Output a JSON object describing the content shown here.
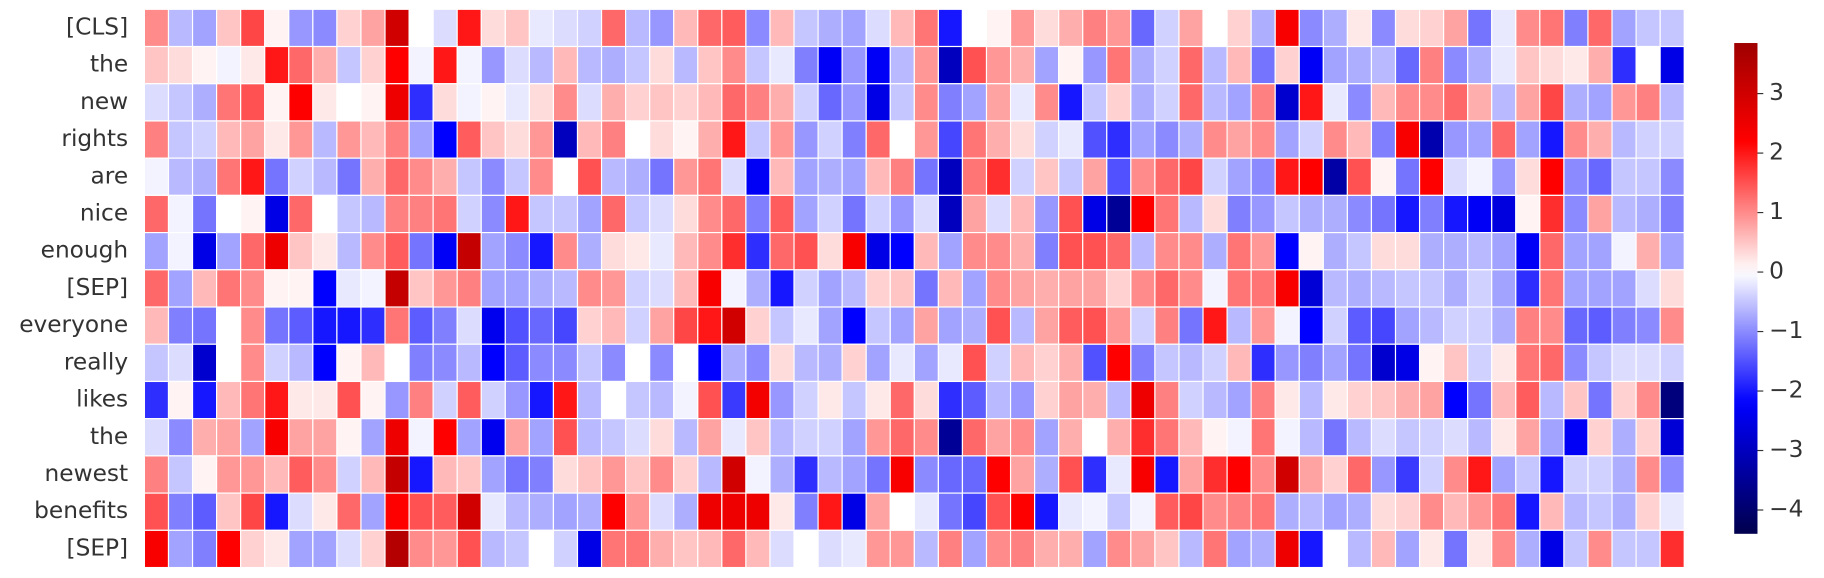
{
  "chart_data": {
    "type": "heatmap",
    "colormap": "seismic",
    "center": 0,
    "vlim": [
      -4.4,
      3.85
    ],
    "colorbar_ticks": [
      {
        "value": -4,
        "label": "−4"
      },
      {
        "value": -3,
        "label": "−3"
      },
      {
        "value": -2,
        "label": "−2"
      },
      {
        "value": -1,
        "label": "−1"
      },
      0,
      1,
      2,
      3
    ],
    "rows": [
      "[CLS]",
      "the",
      "new",
      "rights",
      "are",
      "nice",
      "enough",
      "[SEP]",
      "everyone",
      "really",
      "likes",
      "the",
      "newest",
      "benefits",
      "[SEP]"
    ],
    "values": [
      [
        1.0,
        -0.6,
        -0.8,
        0.5,
        1.6,
        0.1,
        -0.9,
        -1.0,
        0.4,
        0.8,
        3.0,
        0.0,
        -0.3,
        2.0,
        0.3,
        0.5,
        -0.2,
        -0.3,
        -0.4,
        1.3,
        -0.6,
        -0.9,
        0.6,
        1.3,
        1.4,
        -1.0,
        0.6,
        -0.5,
        -0.7,
        -0.8,
        -0.3,
        0.6,
        1.2,
        -2.0,
        0.0,
        0.1,
        0.9,
        0.3,
        0.7,
        1.1,
        0.9,
        -1.3,
        -0.4,
        0.8,
        0.0,
        0.4,
        -0.7,
        2.3,
        -1.0,
        -0.7,
        0.2,
        -1.0,
        0.3,
        0.4,
        0.8,
        -1.2,
        -0.2,
        1.0,
        1.2,
        -1.1,
        1.3,
        -0.8,
        -0.5,
        -0.5
      ],
      [
        0.5,
        0.3,
        0.1,
        -0.1,
        0.2,
        2.0,
        1.3,
        0.7,
        -0.5,
        0.4,
        2.2,
        -0.1,
        2.0,
        -0.1,
        -0.9,
        -0.3,
        -0.6,
        0.6,
        -0.6,
        -0.7,
        -0.5,
        0.3,
        -0.6,
        0.5,
        1.0,
        -0.5,
        -0.2,
        -1.1,
        -2.3,
        -0.9,
        -2.3,
        -0.6,
        0.9,
        -3.0,
        1.5,
        0.9,
        0.7,
        -0.8,
        0.1,
        -0.9,
        1.2,
        -0.7,
        -0.4,
        1.3,
        -0.6,
        0.6,
        -1.2,
        0.4,
        -2.3,
        -0.8,
        -0.7,
        -0.6,
        -1.3,
        1.1,
        -1.0,
        -0.7,
        -0.2,
        0.5,
        0.3,
        0.2,
        0.7,
        -1.8,
        0.0,
        -2.5
      ],
      [
        -0.3,
        -0.5,
        -0.7,
        1.2,
        1.5,
        0.1,
        2.2,
        0.2,
        0.0,
        0.1,
        2.5,
        -1.8,
        0.3,
        -0.1,
        0.1,
        -0.2,
        0.3,
        1.0,
        -0.3,
        0.7,
        0.4,
        0.5,
        0.4,
        0.6,
        1.3,
        1.1,
        0.7,
        -0.4,
        -1.3,
        -0.9,
        -2.5,
        -0.5,
        1.0,
        -1.1,
        -0.8,
        0.8,
        -0.2,
        1.0,
        -2.0,
        -0.5,
        0.4,
        -0.7,
        -0.4,
        1.3,
        -0.6,
        -0.8,
        1.1,
        -2.8,
        2.0,
        -0.2,
        -1.0,
        0.6,
        1.0,
        1.0,
        1.3,
        0.7,
        -0.6,
        0.8,
        1.6,
        -0.7,
        -0.8,
        0.9,
        1.1,
        -0.6
      ],
      [
        1.1,
        -0.5,
        -0.4,
        0.6,
        0.8,
        0.2,
        0.9,
        -0.6,
        0.9,
        0.6,
        1.1,
        -0.8,
        -2.2,
        1.4,
        0.5,
        0.3,
        0.9,
        -3.0,
        0.6,
        1.1,
        0.0,
        0.3,
        0.1,
        0.7,
        2.0,
        -0.5,
        0.9,
        -0.9,
        -0.4,
        -1.1,
        1.3,
        0.0,
        0.9,
        -1.6,
        1.2,
        0.7,
        0.3,
        -0.4,
        -0.2,
        -1.5,
        -1.8,
        -0.8,
        -1.0,
        -0.7,
        1.0,
        0.8,
        1.0,
        -0.8,
        -0.4,
        1.0,
        0.6,
        -1.1,
        2.3,
        -3.2,
        -0.9,
        -0.8,
        1.3,
        -0.8,
        -2.0,
        1.0,
        0.7,
        -0.6,
        -0.4,
        -0.4
      ],
      [
        -0.1,
        -0.6,
        -0.7,
        1.2,
        2.0,
        -1.2,
        -0.4,
        -0.6,
        -1.2,
        0.7,
        1.3,
        1.0,
        0.7,
        -0.5,
        -1.0,
        -0.5,
        1.0,
        0.0,
        1.5,
        -0.6,
        -0.7,
        -1.2,
        0.9,
        1.2,
        -0.3,
        -2.3,
        0.6,
        -0.8,
        -0.7,
        -0.8,
        0.6,
        1.1,
        -1.2,
        -3.0,
        1.2,
        1.8,
        -0.4,
        0.5,
        -0.5,
        0.8,
        -1.5,
        1.0,
        1.3,
        1.6,
        -0.4,
        -0.8,
        -1.0,
        2.0,
        2.2,
        -3.3,
        1.5,
        0.1,
        -1.2,
        2.2,
        -0.3,
        -0.1,
        -0.9,
        0.3,
        2.2,
        -1.0,
        -1.3,
        -0.5,
        -0.5,
        -1.0
      ],
      [
        1.3,
        -0.1,
        -1.2,
        0.0,
        0.1,
        -2.5,
        1.3,
        0.0,
        -0.5,
        -0.6,
        1.1,
        1.1,
        1.2,
        -0.4,
        -1.0,
        2.0,
        -0.5,
        -0.5,
        -0.8,
        1.3,
        -0.5,
        -0.3,
        0.3,
        1.0,
        1.3,
        -1.1,
        1.4,
        -0.8,
        -0.4,
        -1.2,
        -0.4,
        -0.9,
        -0.3,
        -3.0,
        0.8,
        -0.3,
        0.6,
        -0.9,
        1.5,
        -2.5,
        -3.5,
        2.2,
        1.2,
        -0.6,
        0.3,
        -1.1,
        -0.9,
        -0.5,
        -0.7,
        -0.7,
        -1.0,
        -1.2,
        -2.0,
        -1.1,
        -2.0,
        -2.3,
        -2.6,
        0.1,
        1.8,
        -1.0,
        0.8,
        -0.6,
        -0.7,
        -1.1
      ],
      [
        -0.8,
        -0.1,
        -2.5,
        -0.8,
        1.3,
        2.5,
        0.5,
        0.2,
        -0.6,
        1.0,
        1.4,
        -1.2,
        -2.3,
        3.2,
        -0.8,
        -1.0,
        -2.0,
        1.0,
        -0.7,
        0.3,
        0.2,
        -0.2,
        0.6,
        1.0,
        1.8,
        -1.8,
        1.3,
        1.5,
        0.3,
        2.3,
        -2.5,
        -2.2,
        0.6,
        -0.8,
        1.0,
        1.0,
        0.7,
        -1.1,
        1.5,
        1.5,
        1.3,
        -0.6,
        1.0,
        1.0,
        -0.7,
        1.2,
        0.9,
        -2.2,
        0.1,
        -0.7,
        -0.5,
        0.3,
        0.3,
        -0.7,
        -0.7,
        -0.6,
        -0.8,
        -2.3,
        1.3,
        -0.8,
        -0.8,
        -0.1,
        0.7,
        -0.8
      ],
      [
        1.3,
        -0.8,
        0.6,
        1.2,
        1.0,
        0.1,
        0.1,
        -2.2,
        -0.2,
        -0.1,
        3.2,
        0.5,
        0.9,
        1.1,
        -0.8,
        -0.8,
        -0.7,
        -0.6,
        1.0,
        0.9,
        -0.4,
        -0.3,
        0.6,
        2.3,
        -0.1,
        -0.7,
        -2.0,
        -0.4,
        -0.8,
        -0.6,
        0.4,
        0.5,
        -1.2,
        0.6,
        -0.8,
        1.0,
        0.8,
        0.7,
        0.8,
        0.8,
        0.4,
        1.0,
        1.3,
        1.0,
        -0.1,
        1.2,
        1.2,
        2.3,
        -2.7,
        -0.6,
        -0.7,
        -0.6,
        -0.5,
        -0.5,
        -0.7,
        -0.4,
        -0.8,
        -1.8,
        1.2,
        -0.8,
        -0.8,
        -0.8,
        -0.3,
        0.3
      ],
      [
        0.6,
        -1.1,
        -1.2,
        0.0,
        1.0,
        -1.2,
        -1.4,
        -2.0,
        -2.0,
        -1.8,
        1.2,
        -1.4,
        -1.1,
        -0.3,
        -2.4,
        -1.5,
        -1.3,
        -1.6,
        0.4,
        0.6,
        -0.4,
        0.8,
        1.6,
        2.0,
        3.0,
        0.4,
        -0.5,
        -0.2,
        -0.8,
        -2.2,
        -0.5,
        -0.8,
        0.8,
        -0.8,
        -0.7,
        1.5,
        -0.6,
        0.8,
        1.4,
        1.5,
        0.9,
        -0.4,
        1.1,
        -1.2,
        2.0,
        -0.6,
        0.9,
        -0.1,
        -2.2,
        -0.4,
        -1.4,
        -1.6,
        -0.8,
        -0.6,
        -0.4,
        -0.4,
        -0.7,
        1.1,
        1.0,
        -1.3,
        -1.4,
        -1.1,
        -1.0,
        1.0
      ],
      [
        -0.5,
        -0.3,
        -2.8,
        0.0,
        1.0,
        -0.4,
        -0.6,
        -2.2,
        0.1,
        0.6,
        0.0,
        -1.1,
        -1.0,
        -0.6,
        -2.2,
        -1.4,
        -1.0,
        -1.0,
        -0.5,
        -1.0,
        0.0,
        -1.0,
        0.0,
        -2.2,
        -0.7,
        -1.0,
        0.3,
        -0.6,
        -0.7,
        0.4,
        -0.8,
        -0.2,
        -0.8,
        -0.2,
        1.5,
        -0.4,
        0.6,
        0.4,
        0.7,
        -1.5,
        2.2,
        -1.1,
        -0.5,
        -0.6,
        -0.4,
        0.6,
        -1.8,
        -0.9,
        -1.1,
        -0.8,
        -1.2,
        -2.8,
        -2.5,
        0.1,
        0.5,
        -0.4,
        0.2,
        1.2,
        1.3,
        -1.0,
        -0.5,
        -0.3,
        -0.3,
        -0.4
      ],
      [
        -1.8,
        0.1,
        -2.0,
        0.6,
        1.2,
        2.0,
        0.2,
        0.2,
        1.5,
        0.1,
        -0.9,
        1.1,
        -0.4,
        1.4,
        -0.4,
        -0.9,
        -2.0,
        2.0,
        -0.6,
        0.0,
        -0.5,
        -0.6,
        -0.1,
        1.5,
        -1.7,
        2.4,
        -0.9,
        -0.4,
        0.2,
        -0.5,
        0.2,
        1.3,
        0.3,
        -1.8,
        -1.4,
        -0.6,
        -0.9,
        0.4,
        0.8,
        0.7,
        -0.6,
        2.5,
        1.1,
        -0.4,
        -0.6,
        -0.8,
        1.1,
        0.2,
        -0.6,
        0.2,
        0.4,
        0.5,
        0.7,
        0.8,
        -2.2,
        -1.2,
        0.6,
        1.4,
        -0.6,
        0.5,
        -1.2,
        0.4,
        1.0,
        -3.8
      ],
      [
        -0.3,
        -1.0,
        0.7,
        0.8,
        -0.8,
        2.3,
        0.8,
        0.8,
        0.1,
        -0.8,
        2.5,
        -0.1,
        2.2,
        -0.8,
        -2.4,
        0.8,
        -0.8,
        1.5,
        -0.6,
        -0.5,
        -0.3,
        0.3,
        -0.6,
        0.8,
        -0.2,
        0.5,
        -0.6,
        -0.4,
        -0.4,
        -0.8,
        0.9,
        1.3,
        1.0,
        -3.5,
        1.3,
        0.8,
        1.0,
        -0.8,
        0.7,
        0.0,
        0.7,
        1.8,
        1.2,
        0.6,
        0.1,
        -0.1,
        1.2,
        -0.1,
        -0.6,
        -1.2,
        -0.6,
        -0.3,
        -0.5,
        -0.4,
        -0.3,
        -0.6,
        0.2,
        0.8,
        -0.8,
        -2.3,
        0.4,
        -0.7,
        0.4,
        -2.7
      ],
      [
        1.1,
        -0.5,
        0.1,
        0.9,
        0.9,
        0.6,
        1.4,
        1.0,
        -0.4,
        0.6,
        3.2,
        -2.0,
        0.6,
        0.5,
        -0.8,
        -1.2,
        -1.1,
        0.3,
        0.5,
        0.9,
        0.5,
        1.0,
        0.4,
        -0.6,
        3.0,
        -0.1,
        -0.7,
        -1.8,
        -0.6,
        -0.8,
        -1.2,
        2.3,
        -1.0,
        -1.3,
        -1.3,
        2.2,
        0.8,
        -0.7,
        1.5,
        -1.8,
        -0.2,
        2.3,
        -2.0,
        0.8,
        1.8,
        2.2,
        1.0,
        3.0,
        0.8,
        0.4,
        1.3,
        -0.9,
        -1.7,
        -0.4,
        1.0,
        2.0,
        -0.8,
        -0.5,
        -2.0,
        -0.4,
        -0.4,
        -0.7,
        1.0,
        -1.0
      ],
      [
        1.5,
        -1.1,
        -1.4,
        0.5,
        1.6,
        -2.0,
        -0.3,
        0.2,
        1.3,
        -0.8,
        2.2,
        1.5,
        1.4,
        3.0,
        -0.2,
        -0.6,
        -0.7,
        -0.8,
        -0.7,
        2.2,
        0.9,
        -0.3,
        -0.7,
        2.5,
        2.5,
        2.5,
        0.2,
        -1.1,
        2.0,
        -2.5,
        0.8,
        0.0,
        -0.2,
        -1.2,
        -1.6,
        1.5,
        2.2,
        -2.0,
        -0.2,
        -0.1,
        -0.5,
        -0.1,
        1.4,
        1.6,
        1.0,
        1.1,
        1.2,
        -0.7,
        -0.6,
        -0.8,
        -0.7,
        0.3,
        0.4,
        1.0,
        0.6,
        0.9,
        1.2,
        -2.0,
        0.6,
        -0.6,
        -0.5,
        -0.7,
        0.4,
        -0.2
      ],
      [
        2.3,
        -0.8,
        -1.1,
        2.2,
        0.4,
        0.2,
        -0.8,
        -0.8,
        -0.3,
        0.4,
        3.5,
        1.0,
        0.9,
        1.5,
        -0.6,
        -0.5,
        0.0,
        -0.4,
        -2.5,
        1.2,
        1.2,
        0.7,
        0.5,
        0.6,
        1.3,
        0.6,
        -0.3,
        0.0,
        -0.3,
        -0.2,
        0.9,
        0.9,
        -0.6,
        1.1,
        -0.8,
        1.0,
        1.1,
        0.7,
        0.7,
        -0.8,
        1.0,
        0.8,
        0.5,
        -0.6,
        1.2,
        -0.8,
        -0.7,
        2.5,
        -2.0,
        0.0,
        -0.6,
        0.6,
        -0.8,
        0.2,
        -1.2,
        0.2,
        1.0,
        -0.7,
        -2.5,
        -0.5,
        1.0,
        -0.5,
        -0.5,
        1.8
      ]
    ]
  }
}
